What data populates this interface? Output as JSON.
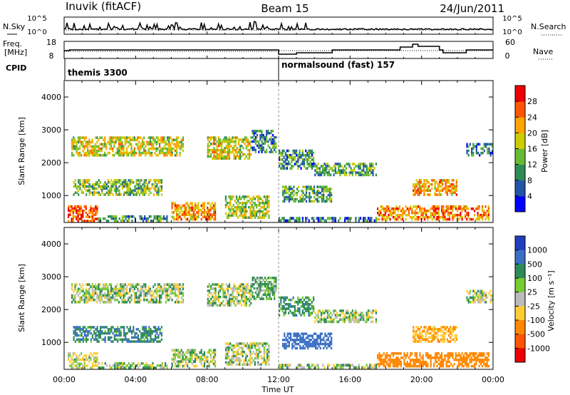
{
  "header": {
    "station": "Inuvik (fitACF)",
    "beam": "Beam 15",
    "date": "24/Jun/2011"
  },
  "sky_panel": {
    "left_label": "N.Sky",
    "right_label": "N.Search",
    "left_ticks": [
      "10^5",
      "10^0"
    ],
    "right_ticks": [
      "10^5",
      "10^0"
    ]
  },
  "freq_panel": {
    "left_label_1": "Freq.",
    "left_label_2": "[MHz]",
    "right_label": "Nave",
    "left_ticks": [
      "18",
      "8"
    ],
    "right_ticks": [
      "60",
      "0"
    ]
  },
  "cpid": {
    "label": "CPID",
    "modes": [
      {
        "name": "themis",
        "id": "3300",
        "start_hour": 0
      },
      {
        "name": "normalsound (fast)",
        "id": "157",
        "start_hour": 12
      }
    ]
  },
  "axes": {
    "ylabel": "Slant Range [km]",
    "xlabel": "Time UT",
    "x_ticks": [
      "00:00",
      "04:00",
      "08:00",
      "12:00",
      "16:00",
      "20:00",
      "00:00"
    ],
    "y_ticks": [
      "1000",
      "2000",
      "3000",
      "4000"
    ],
    "xlim_hours": [
      0,
      24
    ],
    "ylim_km": [
      180,
      4500
    ]
  },
  "power_colorbar": {
    "label": "Power [dB]",
    "ticks": [
      "4",
      "8",
      "12",
      "16",
      "20",
      "24",
      "28"
    ],
    "colors": [
      "#0000ff",
      "#2255aa",
      "#2e8b57",
      "#66bb33",
      "#cccc00",
      "#ffa500",
      "#ff5500",
      "#ee0000"
    ]
  },
  "velocity_colorbar": {
    "label": "Velocity [m s⁻¹]",
    "ticks": [
      "1000",
      "500",
      "100",
      "25",
      "-25",
      "-100",
      "-500",
      "-1000"
    ],
    "colors": [
      "#1f3fbf",
      "#3a6fc4",
      "#2e8b57",
      "#77cc33",
      "#bbbbbb",
      "#ffcc33",
      "#ff8800",
      "#ff5500",
      "#ee0000"
    ]
  },
  "chart_data": {
    "type": "heatmap",
    "title": "Inuvik (fitACF) Beam 15 24/Jun/2011",
    "xlabel": "Time UT",
    "ylabel": "Slant Range [km]",
    "xlim": [
      0,
      24
    ],
    "ylim": [
      180,
      4500
    ],
    "panels": [
      "Power [dB]",
      "Velocity [m s⁻¹]"
    ],
    "echo_regions": [
      {
        "t_start": 0.2,
        "t_end": 1.9,
        "r_start": 200,
        "r_end": 700,
        "power_db": 26,
        "velocity": -25
      },
      {
        "t_start": 1.9,
        "t_end": 5.8,
        "r_start": 200,
        "r_end": 400,
        "power_db": 10,
        "velocity": 10
      },
      {
        "t_start": 0.4,
        "t_end": 6.7,
        "r_start": 2200,
        "r_end": 2800,
        "power_db": 18,
        "velocity": 0
      },
      {
        "t_start": 0.5,
        "t_end": 5.5,
        "r_start": 1000,
        "r_end": 1500,
        "power_db": 14,
        "velocity": 80
      },
      {
        "t_start": 6.0,
        "t_end": 8.5,
        "r_start": 250,
        "r_end": 800,
        "power_db": 22,
        "velocity": 0
      },
      {
        "t_start": 8.0,
        "t_end": 10.5,
        "r_start": 2100,
        "r_end": 2800,
        "power_db": 18,
        "velocity": 0
      },
      {
        "t_start": 9.0,
        "t_end": 11.5,
        "r_start": 300,
        "r_end": 1000,
        "power_db": 16,
        "velocity": 0
      },
      {
        "t_start": 10.5,
        "t_end": 11.9,
        "r_start": 2300,
        "r_end": 3000,
        "power_db": 10,
        "velocity": 40
      },
      {
        "t_start": 12.0,
        "t_end": 17.5,
        "r_start": 200,
        "r_end": 350,
        "power_db": 8,
        "velocity": 10
      },
      {
        "t_start": 12.2,
        "t_end": 15.0,
        "r_start": 800,
        "r_end": 1300,
        "power_db": 12,
        "velocity": 200
      },
      {
        "t_start": 12.0,
        "t_end": 14.0,
        "r_start": 1800,
        "r_end": 2400,
        "power_db": 10,
        "velocity": 60
      },
      {
        "t_start": 14.0,
        "t_end": 17.5,
        "r_start": 1600,
        "r_end": 2000,
        "power_db": 12,
        "velocity": 0
      },
      {
        "t_start": 17.5,
        "t_end": 23.8,
        "r_start": 250,
        "r_end": 700,
        "power_db": 24,
        "velocity": -300
      },
      {
        "t_start": 19.5,
        "t_end": 22.0,
        "r_start": 1000,
        "r_end": 1500,
        "power_db": 22,
        "velocity": -100
      },
      {
        "t_start": 22.5,
        "t_end": 24.0,
        "r_start": 2200,
        "r_end": 2600,
        "power_db": 10,
        "velocity": 0
      }
    ]
  }
}
